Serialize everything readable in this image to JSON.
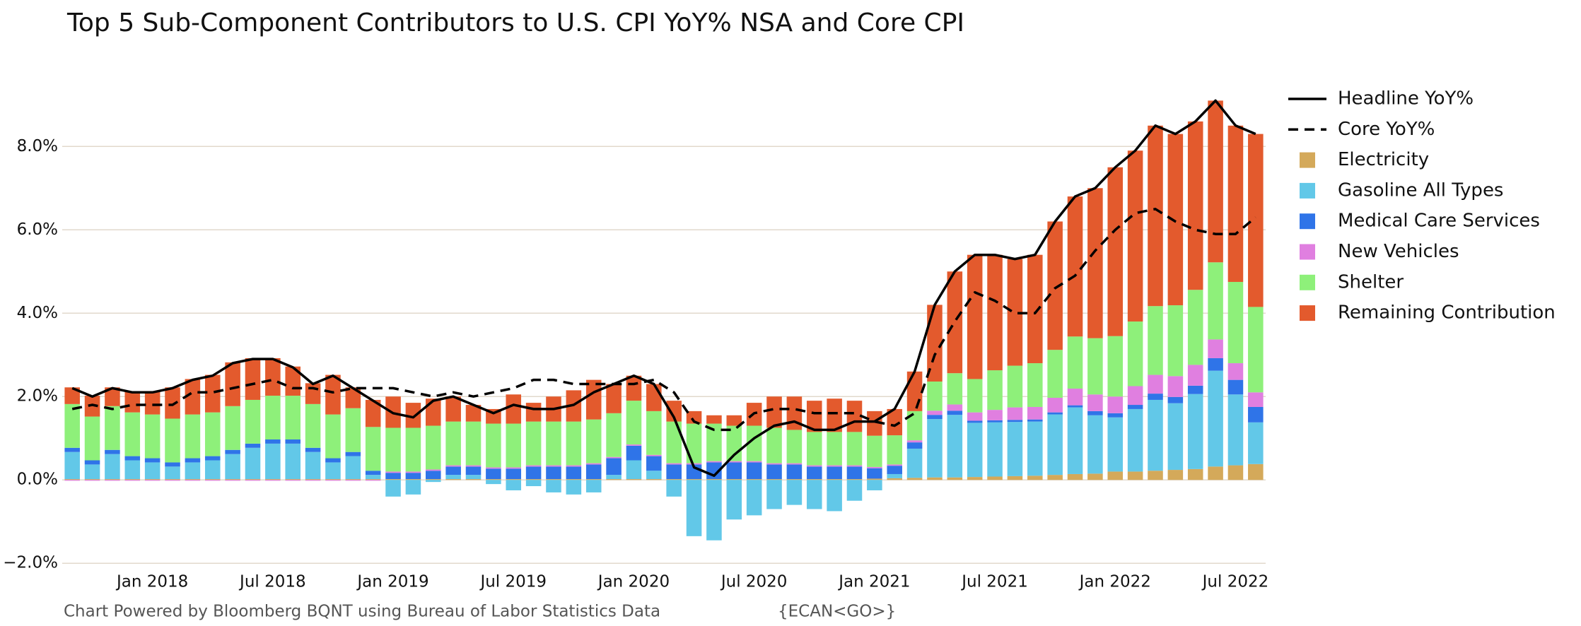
{
  "chart_data": {
    "type": "stacked-bar-line",
    "title": "Top 5 Sub-Component Contributors to U.S. CPI YoY% NSA and Core CPI",
    "source": "Chart Powered by Bloomberg BQNT using Bureau of Labor Statistics Data",
    "source_code": "{ECAN<GO>}",
    "categories": [
      null,
      null,
      null,
      null,
      "Jan 2018",
      null,
      null,
      null,
      null,
      null,
      "Jul 2018",
      null,
      null,
      null,
      null,
      null,
      "Jan 2019",
      null,
      null,
      null,
      null,
      null,
      "Jul 2019",
      null,
      null,
      null,
      null,
      null,
      "Jan 2020",
      null,
      null,
      null,
      null,
      null,
      "Jul 2020",
      null,
      null,
      null,
      null,
      null,
      "Jan 2021",
      null,
      null,
      null,
      null,
      null,
      "Jul 2021",
      null,
      null,
      null,
      null,
      null,
      "Jan 2022",
      null,
      null,
      null,
      null,
      null,
      "Jul 2022",
      null
    ],
    "ylim": [
      -2.2,
      9.7
    ],
    "yticks": [
      {
        "value": -2,
        "label": "−2.0%"
      },
      {
        "value": 0,
        "label": "0.0%"
      },
      {
        "value": 2,
        "label": "2.0%"
      },
      {
        "value": 4,
        "label": "4.0%"
      },
      {
        "value": 6,
        "label": "6.0%"
      },
      {
        "value": 8,
        "label": "8.0%"
      }
    ],
    "grid": true,
    "legend": "right",
    "series": [
      {
        "name": "Headline YoY%",
        "type": "line",
        "style": "solid",
        "color": "#000000",
        "values": [
          2.2,
          2.0,
          2.2,
          2.1,
          2.1,
          2.2,
          2.4,
          2.5,
          2.8,
          2.9,
          2.9,
          2.7,
          2.3,
          2.5,
          2.2,
          1.9,
          1.6,
          1.5,
          1.9,
          2.0,
          1.8,
          1.6,
          1.8,
          1.7,
          1.7,
          1.8,
          2.1,
          2.3,
          2.5,
          2.3,
          1.5,
          0.3,
          0.1,
          0.6,
          1.0,
          1.3,
          1.4,
          1.2,
          1.2,
          1.4,
          1.4,
          1.7,
          2.6,
          4.2,
          5.0,
          5.4,
          5.4,
          5.3,
          5.4,
          6.2,
          6.8,
          7.0,
          7.5,
          7.9,
          8.5,
          8.3,
          8.6,
          9.1,
          8.5,
          8.3
        ]
      },
      {
        "name": "Core YoY%",
        "type": "line",
        "style": "dashed",
        "color": "#000000",
        "values": [
          1.7,
          1.8,
          1.7,
          1.8,
          1.8,
          1.8,
          2.1,
          2.1,
          2.2,
          2.3,
          2.4,
          2.2,
          2.2,
          2.1,
          2.2,
          2.2,
          2.2,
          2.1,
          2.0,
          2.1,
          2.0,
          2.1,
          2.2,
          2.4,
          2.4,
          2.3,
          2.3,
          2.3,
          2.3,
          2.4,
          2.1,
          1.4,
          1.2,
          1.2,
          1.6,
          1.7,
          1.7,
          1.6,
          1.6,
          1.6,
          1.4,
          1.3,
          1.6,
          3.0,
          3.8,
          4.5,
          4.3,
          4.0,
          4.0,
          4.6,
          4.9,
          5.5,
          6.0,
          6.4,
          6.5,
          6.2,
          6.0,
          5.9,
          5.9,
          6.3
        ]
      },
      {
        "name": "Electricity",
        "type": "bar",
        "color": "#d4a95a",
        "values": [
          0.02,
          0.02,
          0.02,
          0.02,
          0.02,
          0.02,
          0.02,
          0.02,
          0.02,
          0.02,
          0.02,
          0.02,
          0.02,
          0.02,
          0.02,
          0.02,
          0.02,
          0.02,
          0.02,
          0.02,
          0.02,
          0.02,
          0.02,
          0.02,
          0.02,
          0.02,
          0.02,
          0.02,
          0.02,
          0.02,
          0.02,
          0.02,
          0.02,
          0.02,
          0.02,
          0.02,
          0.02,
          0.02,
          0.02,
          0.02,
          0.03,
          0.04,
          0.05,
          0.06,
          0.06,
          0.07,
          0.08,
          0.09,
          0.1,
          0.12,
          0.14,
          0.15,
          0.2,
          0.2,
          0.22,
          0.24,
          0.26,
          0.32,
          0.35,
          0.38
        ]
      },
      {
        "name": "Gasoline All Types",
        "type": "bar",
        "color": "#62c8e8",
        "values": [
          0.65,
          0.35,
          0.6,
          0.45,
          0.4,
          0.3,
          0.4,
          0.45,
          0.6,
          0.75,
          0.85,
          0.85,
          0.65,
          0.4,
          0.55,
          0.1,
          -0.4,
          -0.35,
          -0.05,
          0.1,
          0.1,
          -0.1,
          -0.25,
          -0.15,
          -0.3,
          -0.35,
          -0.3,
          0.1,
          0.45,
          0.2,
          -0.4,
          -1.35,
          -1.45,
          -0.95,
          -0.85,
          -0.7,
          -0.6,
          -0.7,
          -0.75,
          -0.5,
          -0.25,
          0.1,
          0.7,
          1.4,
          1.5,
          1.3,
          1.3,
          1.3,
          1.3,
          1.45,
          1.6,
          1.4,
          1.3,
          1.5,
          1.7,
          1.6,
          1.8,
          2.3,
          1.7,
          1.0
        ]
      },
      {
        "name": "Medical Care Services",
        "type": "bar",
        "color": "#2f74e8",
        "values": [
          0.1,
          0.1,
          0.1,
          0.1,
          0.1,
          0.1,
          0.1,
          0.1,
          0.1,
          0.1,
          0.1,
          0.1,
          0.1,
          0.1,
          0.1,
          0.1,
          0.15,
          0.15,
          0.2,
          0.2,
          0.2,
          0.25,
          0.25,
          0.3,
          0.3,
          0.3,
          0.35,
          0.4,
          0.35,
          0.35,
          0.35,
          0.35,
          0.4,
          0.4,
          0.4,
          0.35,
          0.35,
          0.3,
          0.3,
          0.3,
          0.25,
          0.2,
          0.15,
          0.1,
          0.1,
          0.05,
          0.05,
          0.05,
          0.05,
          0.05,
          0.05,
          0.1,
          0.1,
          0.1,
          0.15,
          0.15,
          0.2,
          0.3,
          0.35,
          0.37
        ]
      },
      {
        "name": "New Vehicles",
        "type": "bar",
        "color": "#e07fe0",
        "values": [
          -0.02,
          -0.02,
          -0.02,
          -0.02,
          -0.02,
          -0.02,
          -0.02,
          -0.02,
          -0.02,
          -0.02,
          -0.02,
          -0.02,
          -0.02,
          -0.02,
          -0.02,
          -0.02,
          0.03,
          0.03,
          0.03,
          0.03,
          0.03,
          0.03,
          0.03,
          0.03,
          0.03,
          0.03,
          0.03,
          0.03,
          0.03,
          0.03,
          0.03,
          0.03,
          0.03,
          0.03,
          0.03,
          0.03,
          0.03,
          0.03,
          0.03,
          0.03,
          0.03,
          0.03,
          0.05,
          0.1,
          0.15,
          0.2,
          0.25,
          0.3,
          0.3,
          0.35,
          0.4,
          0.4,
          0.4,
          0.45,
          0.45,
          0.5,
          0.5,
          0.45,
          0.4,
          0.35
        ]
      },
      {
        "name": "Shelter",
        "type": "bar",
        "color": "#8ef07a",
        "values": [
          1.05,
          1.05,
          1.05,
          1.05,
          1.05,
          1.05,
          1.05,
          1.05,
          1.05,
          1.05,
          1.05,
          1.05,
          1.05,
          1.05,
          1.05,
          1.05,
          1.05,
          1.05,
          1.05,
          1.05,
          1.05,
          1.05,
          1.05,
          1.05,
          1.05,
          1.05,
          1.05,
          1.05,
          1.05,
          1.05,
          1.0,
          0.95,
          0.9,
          0.85,
          0.85,
          0.85,
          0.8,
          0.8,
          0.8,
          0.8,
          0.75,
          0.7,
          0.7,
          0.7,
          0.75,
          0.8,
          0.95,
          1.0,
          1.05,
          1.15,
          1.25,
          1.35,
          1.45,
          1.55,
          1.65,
          1.7,
          1.8,
          1.85,
          1.95,
          2.05
        ]
      },
      {
        "name": "Remaining Contribution",
        "type": "bar",
        "color": "#e35a2d",
        "values": [
          0.4,
          0.5,
          0.45,
          0.5,
          0.55,
          0.75,
          0.85,
          0.9,
          1.05,
          1.0,
          0.9,
          0.7,
          0.5,
          0.95,
          0.5,
          0.65,
          0.75,
          0.6,
          0.65,
          0.6,
          0.4,
          0.35,
          0.7,
          0.45,
          0.6,
          0.75,
          0.95,
          0.7,
          0.6,
          0.65,
          0.5,
          0.3,
          0.2,
          0.25,
          0.55,
          0.75,
          0.8,
          0.75,
          0.8,
          0.75,
          0.59,
          0.63,
          0.95,
          1.84,
          2.44,
          2.98,
          2.77,
          2.56,
          2.6,
          3.08,
          3.36,
          3.6,
          4.05,
          4.1,
          4.33,
          4.11,
          4.04,
          3.88,
          3.75,
          4.15
        ]
      }
    ]
  }
}
